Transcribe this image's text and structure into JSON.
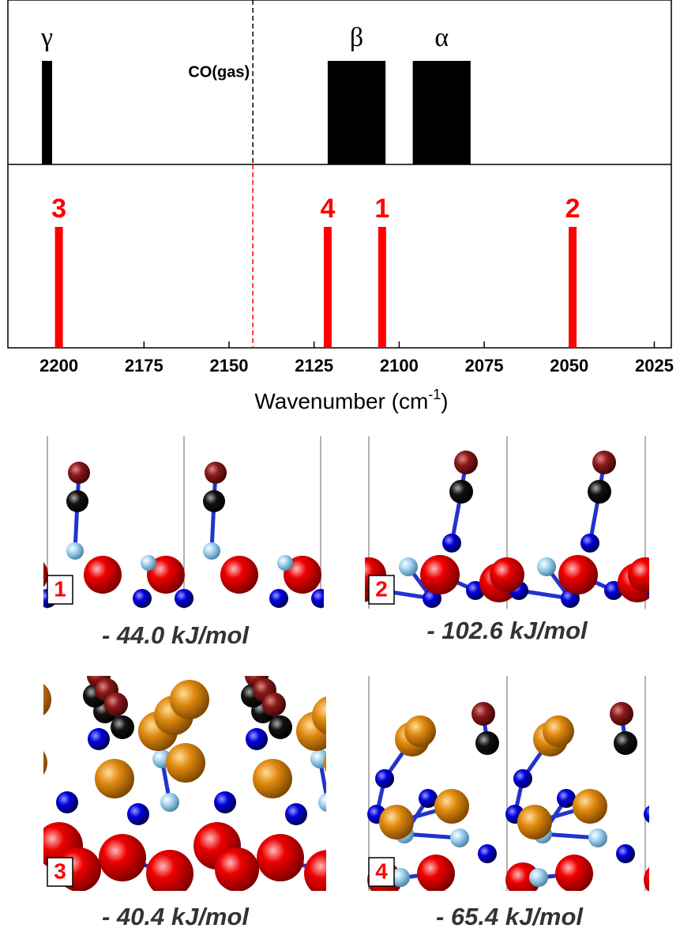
{
  "chart_data": {
    "type": "ir-spectrum",
    "xlabel": "Wavenumber (cm",
    "xlabel_sup": "-1",
    "xlabel_end": ")",
    "xlim": [
      2215,
      2020
    ],
    "xticks": [
      2200,
      2175,
      2150,
      2125,
      2100,
      2075,
      2050,
      2025
    ],
    "reference": {
      "label": "CO(gas)",
      "value": 2143
    },
    "experimental": {
      "color": "#000000",
      "peaks": [
        {
          "label": "γ",
          "range": [
            2205,
            2202
          ]
        },
        {
          "label": "β",
          "range": [
            2121,
            2104
          ]
        },
        {
          "label": "α",
          "range": [
            2096,
            2079
          ]
        }
      ]
    },
    "computed": {
      "color": "#ff0000",
      "peaks": [
        {
          "label": "3",
          "value": 2200
        },
        {
          "label": "4",
          "value": 2121
        },
        {
          "label": "1",
          "value": 2105
        },
        {
          "label": "2",
          "value": 2049
        }
      ]
    }
  },
  "structures": [
    {
      "label": "1",
      "energy": "- 44.0 kJ/mol"
    },
    {
      "label": "2",
      "energy": "- 102.6 kJ/mol"
    },
    {
      "label": "3",
      "energy": "- 40.4 kJ/mol"
    },
    {
      "label": "4",
      "energy": "- 65.4 kJ/mol"
    }
  ]
}
